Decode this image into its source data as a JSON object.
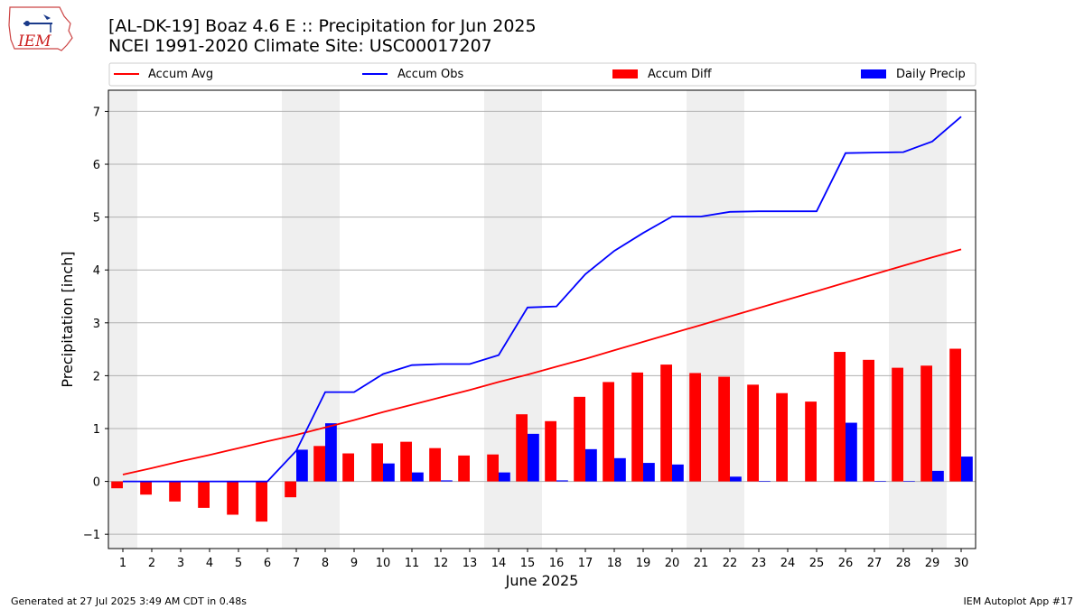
{
  "title_line1": "[AL-DK-19] Boaz 4.6 E :: Precipitation for Jun 2025",
  "title_line2": "NCEI 1991-2020 Climate Site: USC00017207",
  "logo_text": "IEM",
  "footer_left": "Generated at 27 Jul 2025 3:49 AM CDT in 0.48s",
  "footer_right": "IEM Autoplot App #17",
  "colors": {
    "avg": "#ff0000",
    "obs": "#0000ff",
    "diff": "#ff0000",
    "daily": "#0000ff",
    "weekend_band": "#efefef",
    "grid": "#b0b0b0"
  },
  "chart_data": {
    "type": "bar",
    "xlabel": "June 2025",
    "ylabel": "Precipitation [inch]",
    "xlim": [
      0.5,
      30.5
    ],
    "ylim": [
      -1.27,
      7.4
    ],
    "yticks": [
      -1,
      0,
      1,
      2,
      3,
      4,
      5,
      6,
      7
    ],
    "legend_placement": "top",
    "grid": "y",
    "shaded_days": [
      1,
      7,
      8,
      14,
      15,
      21,
      22,
      28,
      29
    ],
    "x": [
      1,
      2,
      3,
      4,
      5,
      6,
      7,
      8,
      9,
      10,
      11,
      12,
      13,
      14,
      15,
      16,
      17,
      18,
      19,
      20,
      21,
      22,
      23,
      24,
      25,
      26,
      27,
      28,
      29,
      30
    ],
    "series": [
      {
        "name": "Accum Avg",
        "kind": "line",
        "values": [
          0.13,
          0.25,
          0.38,
          0.5,
          0.63,
          0.76,
          0.88,
          1.02,
          1.16,
          1.31,
          1.45,
          1.59,
          1.73,
          1.88,
          2.02,
          2.17,
          2.32,
          2.48,
          2.64,
          2.8,
          2.96,
          3.12,
          3.28,
          3.44,
          3.6,
          3.76,
          3.92,
          4.08,
          4.24,
          4.39
        ]
      },
      {
        "name": "Accum Obs",
        "kind": "line",
        "values": [
          0,
          0,
          0,
          0,
          0,
          0,
          0.58,
          1.69,
          1.69,
          2.03,
          2.2,
          2.22,
          2.22,
          2.39,
          3.29,
          3.31,
          3.92,
          4.36,
          4.7,
          5.01,
          5.01,
          5.1,
          5.11,
          5.11,
          5.11,
          6.21,
          6.22,
          6.23,
          6.43,
          6.9
        ]
      },
      {
        "name": "Accum Diff",
        "kind": "bar",
        "values": [
          -0.13,
          -0.25,
          -0.38,
          -0.5,
          -0.63,
          -0.76,
          -0.3,
          0.67,
          0.53,
          0.72,
          0.75,
          0.63,
          0.49,
          0.51,
          1.27,
          1.14,
          1.6,
          1.88,
          2.06,
          2.21,
          2.05,
          1.98,
          1.83,
          1.67,
          1.51,
          2.45,
          2.3,
          2.15,
          2.19,
          2.51
        ]
      },
      {
        "name": "Daily Precip",
        "kind": "bar",
        "values": [
          0,
          0,
          0,
          0,
          0,
          0,
          0.6,
          1.1,
          0,
          0.34,
          0.17,
          0.02,
          0,
          0.17,
          0.9,
          0.02,
          0.61,
          0.44,
          0.35,
          0.32,
          0,
          0.09,
          0.01,
          0,
          0,
          1.11,
          0.01,
          0.01,
          0.2,
          0.47
        ]
      }
    ]
  }
}
